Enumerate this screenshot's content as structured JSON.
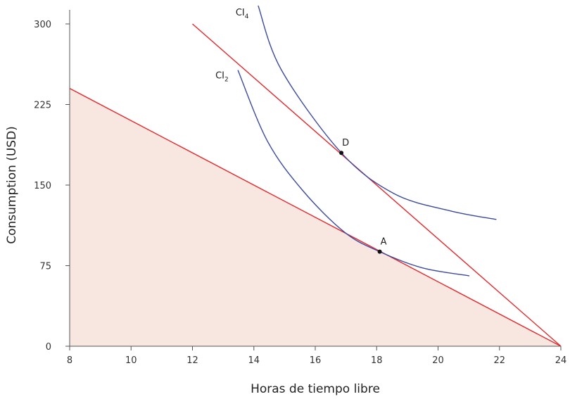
{
  "chart_data": {
    "type": "line",
    "title": "",
    "xlabel": "Horas de tiempo libre",
    "ylabel": "Consumption (USD)",
    "xlim": [
      8,
      24
    ],
    "ylim": [
      0,
      313
    ],
    "xticks": [
      8,
      10,
      12,
      14,
      16,
      18,
      20,
      22,
      24
    ],
    "yticks": [
      0,
      75,
      150,
      225,
      300
    ],
    "grid": false,
    "colors": {
      "budget": "#e5272b",
      "indifference": "#3c4aa0",
      "feasible_fill": "#f8e7e1",
      "axis": "#555555"
    },
    "feasible_region": [
      [
        8,
        0
      ],
      [
        8,
        240
      ],
      [
        24,
        0
      ]
    ],
    "budget_lines": [
      {
        "points": [
          [
            8,
            240
          ],
          [
            24,
            0
          ]
        ]
      },
      {
        "points": [
          [
            12,
            300
          ],
          [
            24,
            0
          ]
        ]
      }
    ],
    "indifference_curves": [
      {
        "name": "CI",
        "subscript": "2",
        "points": [
          [
            13.48,
            257
          ],
          [
            14.44,
            191
          ],
          [
            15.59,
            145
          ],
          [
            16.96,
            106
          ],
          [
            18.1,
            88
          ],
          [
            19.48,
            73
          ],
          [
            21.02,
            65.5
          ]
        ]
      },
      {
        "name": "CI",
        "subscript": "4",
        "points": [
          [
            14.14,
            317
          ],
          [
            14.9,
            257
          ],
          [
            16.85,
            180
          ],
          [
            18.57,
            142
          ],
          [
            20.4,
            126
          ],
          [
            21.9,
            118
          ]
        ]
      }
    ],
    "points": [
      {
        "label": "A",
        "x": 18.1,
        "y": 88
      },
      {
        "label": "D",
        "x": 16.85,
        "y": 180
      }
    ]
  }
}
